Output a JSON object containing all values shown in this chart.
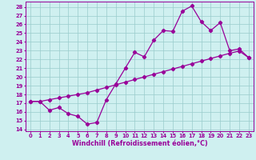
{
  "xlabel": "Windchill (Refroidissement éolien,°C)",
  "x_ticks": [
    0,
    1,
    2,
    3,
    4,
    5,
    6,
    7,
    8,
    9,
    10,
    11,
    12,
    13,
    14,
    15,
    16,
    17,
    18,
    19,
    20,
    21,
    22,
    23
  ],
  "y_ticks": [
    14,
    15,
    16,
    17,
    18,
    19,
    20,
    21,
    22,
    23,
    24,
    25,
    26,
    27,
    28
  ],
  "ylim": [
    13.8,
    28.6
  ],
  "xlim": [
    -0.5,
    23.5
  ],
  "line1_x": [
    0,
    1,
    2,
    3,
    4,
    5,
    6,
    7,
    8,
    9,
    10,
    11,
    12,
    13,
    14,
    15,
    16,
    17,
    18,
    19,
    20,
    21,
    22,
    23
  ],
  "line1_y": [
    17.2,
    17.2,
    16.2,
    16.5,
    15.8,
    15.5,
    14.6,
    14.8,
    17.4,
    19.2,
    21.0,
    22.8,
    22.3,
    24.2,
    25.3,
    25.2,
    27.5,
    28.1,
    26.3,
    25.3,
    26.2,
    23.0,
    23.2,
    22.2
  ],
  "line2_x": [
    0,
    1,
    2,
    3,
    4,
    5,
    6,
    7,
    8,
    9,
    10,
    11,
    12,
    13,
    14,
    15,
    16,
    17,
    18,
    19,
    20,
    21,
    22,
    23
  ],
  "line2_y": [
    17.2,
    17.2,
    17.4,
    17.6,
    17.8,
    18.0,
    18.2,
    18.5,
    18.8,
    19.1,
    19.4,
    19.7,
    20.0,
    20.3,
    20.6,
    20.9,
    21.2,
    21.5,
    21.8,
    22.1,
    22.4,
    22.7,
    22.95,
    22.2
  ],
  "line_color": "#990099",
  "bg_color": "#cff0f0",
  "grid_color": "#99cccc",
  "marker": "D",
  "marker_size": 2.2,
  "line_width": 0.9,
  "tick_fontsize": 4.8,
  "xlabel_fontsize": 5.8
}
